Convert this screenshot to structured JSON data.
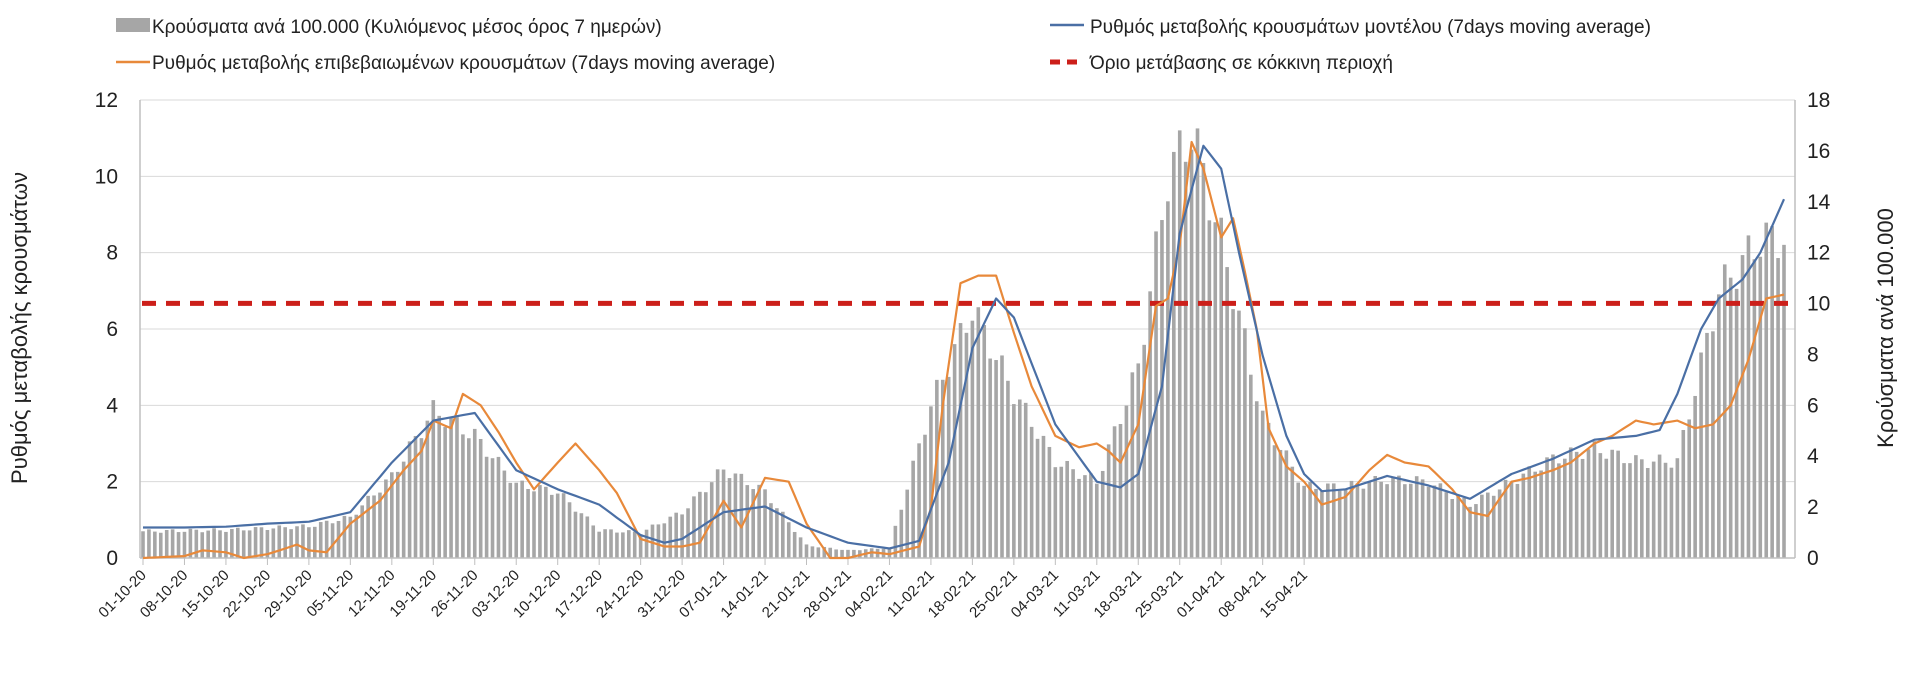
{
  "chart_data": {
    "type": "bar+line",
    "title": "",
    "y_left": {
      "label": "Ρυθμός μεταβολής κρουσμάτων",
      "ticks": [
        "0",
        "2",
        "4",
        "6",
        "8",
        "10",
        "12"
      ],
      "ylim": [
        0,
        12
      ]
    },
    "y_right": {
      "label": "Κρούσματα ανά 100.000",
      "ticks": [
        "0",
        "2",
        "4",
        "6",
        "8",
        "10",
        "12",
        "14",
        "16",
        "18"
      ],
      "ylim": [
        0,
        18
      ]
    },
    "x_ticks": [
      "01-10-20",
      "08-10-20",
      "15-10-20",
      "22-10-20",
      "29-10-20",
      "05-11-20",
      "12-11-20",
      "19-11-20",
      "26-11-20",
      "03-12-20",
      "10-12-20",
      "17-12-20",
      "24-12-20",
      "31-12-20",
      "07-01-21",
      "14-01-21",
      "21-01-21",
      "28-01-21",
      "04-02-21",
      "11-02-21",
      "18-02-21",
      "25-02-21",
      "04-03-21",
      "11-03-21",
      "18-03-21",
      "25-03-21",
      "01-04-21",
      "08-04-21",
      "15-04-21"
    ],
    "x_range": [
      "01-10-20",
      "15-04-21"
    ],
    "grid": true,
    "legend_position": "top",
    "legend": {
      "bars": "Κρούσματα ανά 100.000 (Κυλιόμενος μέσος όρος 7 ημερών)",
      "model": "Ρυθμός μεταβολής κρουσμάτων μοντέλου (7days moving average)",
      "confirmed": "Ρυθμός μεταβολής επιβεβαιωμένων κρουσμάτων (7days moving average)",
      "threshold": "Όριο μετάβασης σε κόκκινη περιοχή"
    },
    "colors": {
      "bars": "#a6a6a6",
      "model": "#4a6fa5",
      "confirmed": "#e8893a",
      "threshold": "#cc1f1a"
    },
    "threshold_left_axis": 6.67,
    "series": [
      {
        "name": "Κρούσματα ανά 100.000 (Κυλιόμενος μέσος όρος 7 ημερών)",
        "type": "bar",
        "axis": "right",
        "keypoints": [
          [
            0,
            1.05
          ],
          [
            14,
            1.1
          ],
          [
            28,
            1.25
          ],
          [
            35,
            1.6
          ],
          [
            42,
            3.2
          ],
          [
            49,
            5.8
          ],
          [
            56,
            4.8
          ],
          [
            63,
            2.9
          ],
          [
            70,
            2.6
          ],
          [
            77,
            1.1
          ],
          [
            84,
            1.0
          ],
          [
            91,
            1.8
          ],
          [
            98,
            3.5
          ],
          [
            105,
            2.6
          ],
          [
            112,
            0.5
          ],
          [
            119,
            0.3
          ],
          [
            126,
            0.4
          ],
          [
            133,
            6.0
          ],
          [
            140,
            9.8
          ],
          [
            147,
            6.5
          ],
          [
            154,
            3.8
          ],
          [
            161,
            3.0
          ],
          [
            168,
            7.5
          ],
          [
            173,
            15.0
          ],
          [
            177,
            16.8
          ],
          [
            182,
            12.5
          ],
          [
            189,
            5.5
          ],
          [
            196,
            2.8
          ],
          [
            203,
            2.8
          ],
          [
            210,
            3.1
          ],
          [
            217,
            3.0
          ],
          [
            224,
            2.1
          ],
          [
            231,
            3.0
          ],
          [
            238,
            3.9
          ],
          [
            245,
            4.3
          ],
          [
            252,
            3.8
          ],
          [
            259,
            3.8
          ],
          [
            266,
            10.5
          ],
          [
            273,
            12.5
          ],
          [
            277,
            12.6
          ]
        ]
      },
      {
        "name": "Ρυθμός μεταβολής κρουσμάτων μοντέλου (7days moving average)",
        "type": "line",
        "axis": "left",
        "keypoints": [
          [
            0,
            0.8
          ],
          [
            7,
            0.8
          ],
          [
            14,
            0.82
          ],
          [
            21,
            0.9
          ],
          [
            28,
            0.95
          ],
          [
            35,
            1.2
          ],
          [
            42,
            2.5
          ],
          [
            49,
            3.6
          ],
          [
            56,
            3.8
          ],
          [
            63,
            2.3
          ],
          [
            70,
            1.8
          ],
          [
            77,
            1.4
          ],
          [
            84,
            0.6
          ],
          [
            88,
            0.4
          ],
          [
            91,
            0.5
          ],
          [
            98,
            1.2
          ],
          [
            105,
            1.35
          ],
          [
            112,
            0.8
          ],
          [
            119,
            0.4
          ],
          [
            126,
            0.25
          ],
          [
            131,
            0.45
          ],
          [
            136,
            2.5
          ],
          [
            140,
            5.5
          ],
          [
            144,
            6.8
          ],
          [
            147,
            6.3
          ],
          [
            154,
            3.5
          ],
          [
            161,
            2.0
          ],
          [
            165,
            1.85
          ],
          [
            168,
            2.2
          ],
          [
            172,
            4.5
          ],
          [
            175,
            8.5
          ],
          [
            179,
            10.8
          ],
          [
            182,
            10.2
          ],
          [
            185,
            8.0
          ],
          [
            189,
            5.3
          ],
          [
            193,
            3.2
          ],
          [
            196,
            2.2
          ],
          [
            199,
            1.75
          ],
          [
            203,
            1.8
          ],
          [
            210,
            2.15
          ],
          [
            217,
            1.9
          ],
          [
            224,
            1.55
          ],
          [
            231,
            2.2
          ],
          [
            238,
            2.6
          ],
          [
            245,
            3.1
          ],
          [
            252,
            3.2
          ],
          [
            256,
            3.35
          ],
          [
            259,
            4.3
          ],
          [
            263,
            6.0
          ],
          [
            266,
            6.8
          ],
          [
            270,
            7.3
          ],
          [
            273,
            8.0
          ],
          [
            277,
            9.4
          ]
        ]
      },
      {
        "name": "Ρυθμός μεταβολής επιβεβαιωμένων κρουσμάτων (7days moving average)",
        "type": "line",
        "axis": "left",
        "keypoints": [
          [
            0,
            0
          ],
          [
            7,
            0.05
          ],
          [
            10,
            0.2
          ],
          [
            14,
            0.15
          ],
          [
            17,
            0
          ],
          [
            21,
            0.1
          ],
          [
            26,
            0.35
          ],
          [
            28,
            0.2
          ],
          [
            31,
            0.15
          ],
          [
            35,
            0.9
          ],
          [
            40,
            1.5
          ],
          [
            44,
            2.3
          ],
          [
            47,
            2.8
          ],
          [
            49,
            3.6
          ],
          [
            52,
            3.4
          ],
          [
            54,
            4.3
          ],
          [
            57,
            4.0
          ],
          [
            60,
            3.3
          ],
          [
            63,
            2.5
          ],
          [
            66,
            1.8
          ],
          [
            70,
            2.5
          ],
          [
            73,
            3.0
          ],
          [
            77,
            2.3
          ],
          [
            80,
            1.7
          ],
          [
            84,
            0.5
          ],
          [
            88,
            0.3
          ],
          [
            91,
            0.3
          ],
          [
            94,
            0.4
          ],
          [
            98,
            1.5
          ],
          [
            101,
            0.8
          ],
          [
            105,
            2.1
          ],
          [
            109,
            2.0
          ],
          [
            112,
            0.9
          ],
          [
            116,
            0.0
          ],
          [
            119,
            0.0
          ],
          [
            123,
            0.15
          ],
          [
            126,
            0.1
          ],
          [
            131,
            0.3
          ],
          [
            133,
            1.3
          ],
          [
            135,
            4.0
          ],
          [
            138,
            7.2
          ],
          [
            141,
            7.4
          ],
          [
            144,
            7.4
          ],
          [
            147,
            5.9
          ],
          [
            150,
            4.5
          ],
          [
            154,
            3.2
          ],
          [
            158,
            2.9
          ],
          [
            161,
            3.0
          ],
          [
            163,
            2.8
          ],
          [
            165,
            2.5
          ],
          [
            168,
            3.5
          ],
          [
            171,
            6.6
          ],
          [
            173,
            6.8
          ],
          [
            175,
            8.2
          ],
          [
            177,
            10.9
          ],
          [
            179,
            10.2
          ],
          [
            182,
            8.4
          ],
          [
            184,
            8.9
          ],
          [
            186,
            7.5
          ],
          [
            188,
            6.0
          ],
          [
            190,
            3.4
          ],
          [
            193,
            2.4
          ],
          [
            196,
            2.0
          ],
          [
            199,
            1.4
          ],
          [
            203,
            1.6
          ],
          [
            207,
            2.3
          ],
          [
            210,
            2.7
          ],
          [
            213,
            2.5
          ],
          [
            217,
            2.4
          ],
          [
            221,
            1.8
          ],
          [
            224,
            1.2
          ],
          [
            227,
            1.1
          ],
          [
            231,
            2.0
          ],
          [
            234,
            2.1
          ],
          [
            238,
            2.3
          ],
          [
            241,
            2.5
          ],
          [
            245,
            3.0
          ],
          [
            248,
            3.2
          ],
          [
            252,
            3.6
          ],
          [
            255,
            3.5
          ],
          [
            259,
            3.6
          ],
          [
            262,
            3.4
          ],
          [
            265,
            3.5
          ],
          [
            268,
            4.0
          ],
          [
            271,
            5.2
          ],
          [
            274,
            6.8
          ],
          [
            277,
            6.9
          ]
        ]
      }
    ]
  }
}
